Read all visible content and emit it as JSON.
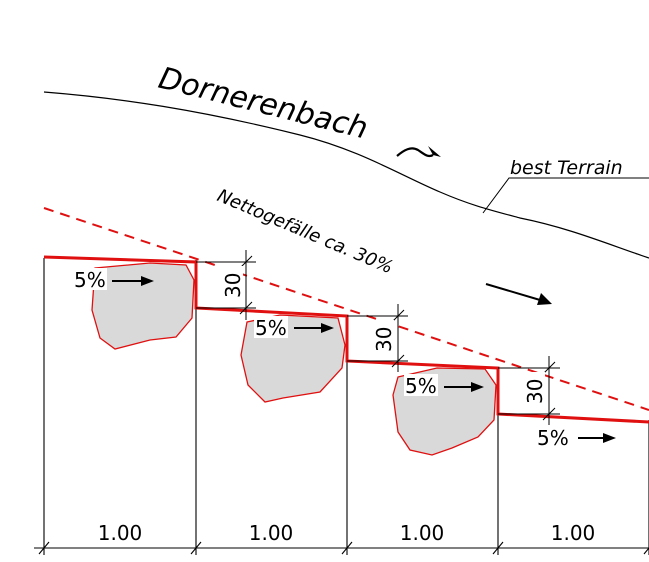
{
  "stream_name": "Dornerenbach",
  "terrain_label": "best Terrain",
  "slope_label": "Nettogefälle ca. 30%",
  "step_slope_labels": [
    "5%",
    "5%",
    "5%",
    "5%"
  ],
  "drop_height_labels": [
    "30",
    "30",
    "30"
  ],
  "step_length_labels": [
    "1.00",
    "1.00",
    "1.00",
    "1.00"
  ],
  "colors": {
    "line": "#000000",
    "step_line": "#e01010",
    "dashed_slope": "#e01010",
    "boulder_fill": "#d9d9d9",
    "boulder_stroke": "#e01010"
  },
  "icons": [
    "flow-arrow-icon",
    "slope-arrow-icon",
    "step-slope-arrow-icon"
  ]
}
